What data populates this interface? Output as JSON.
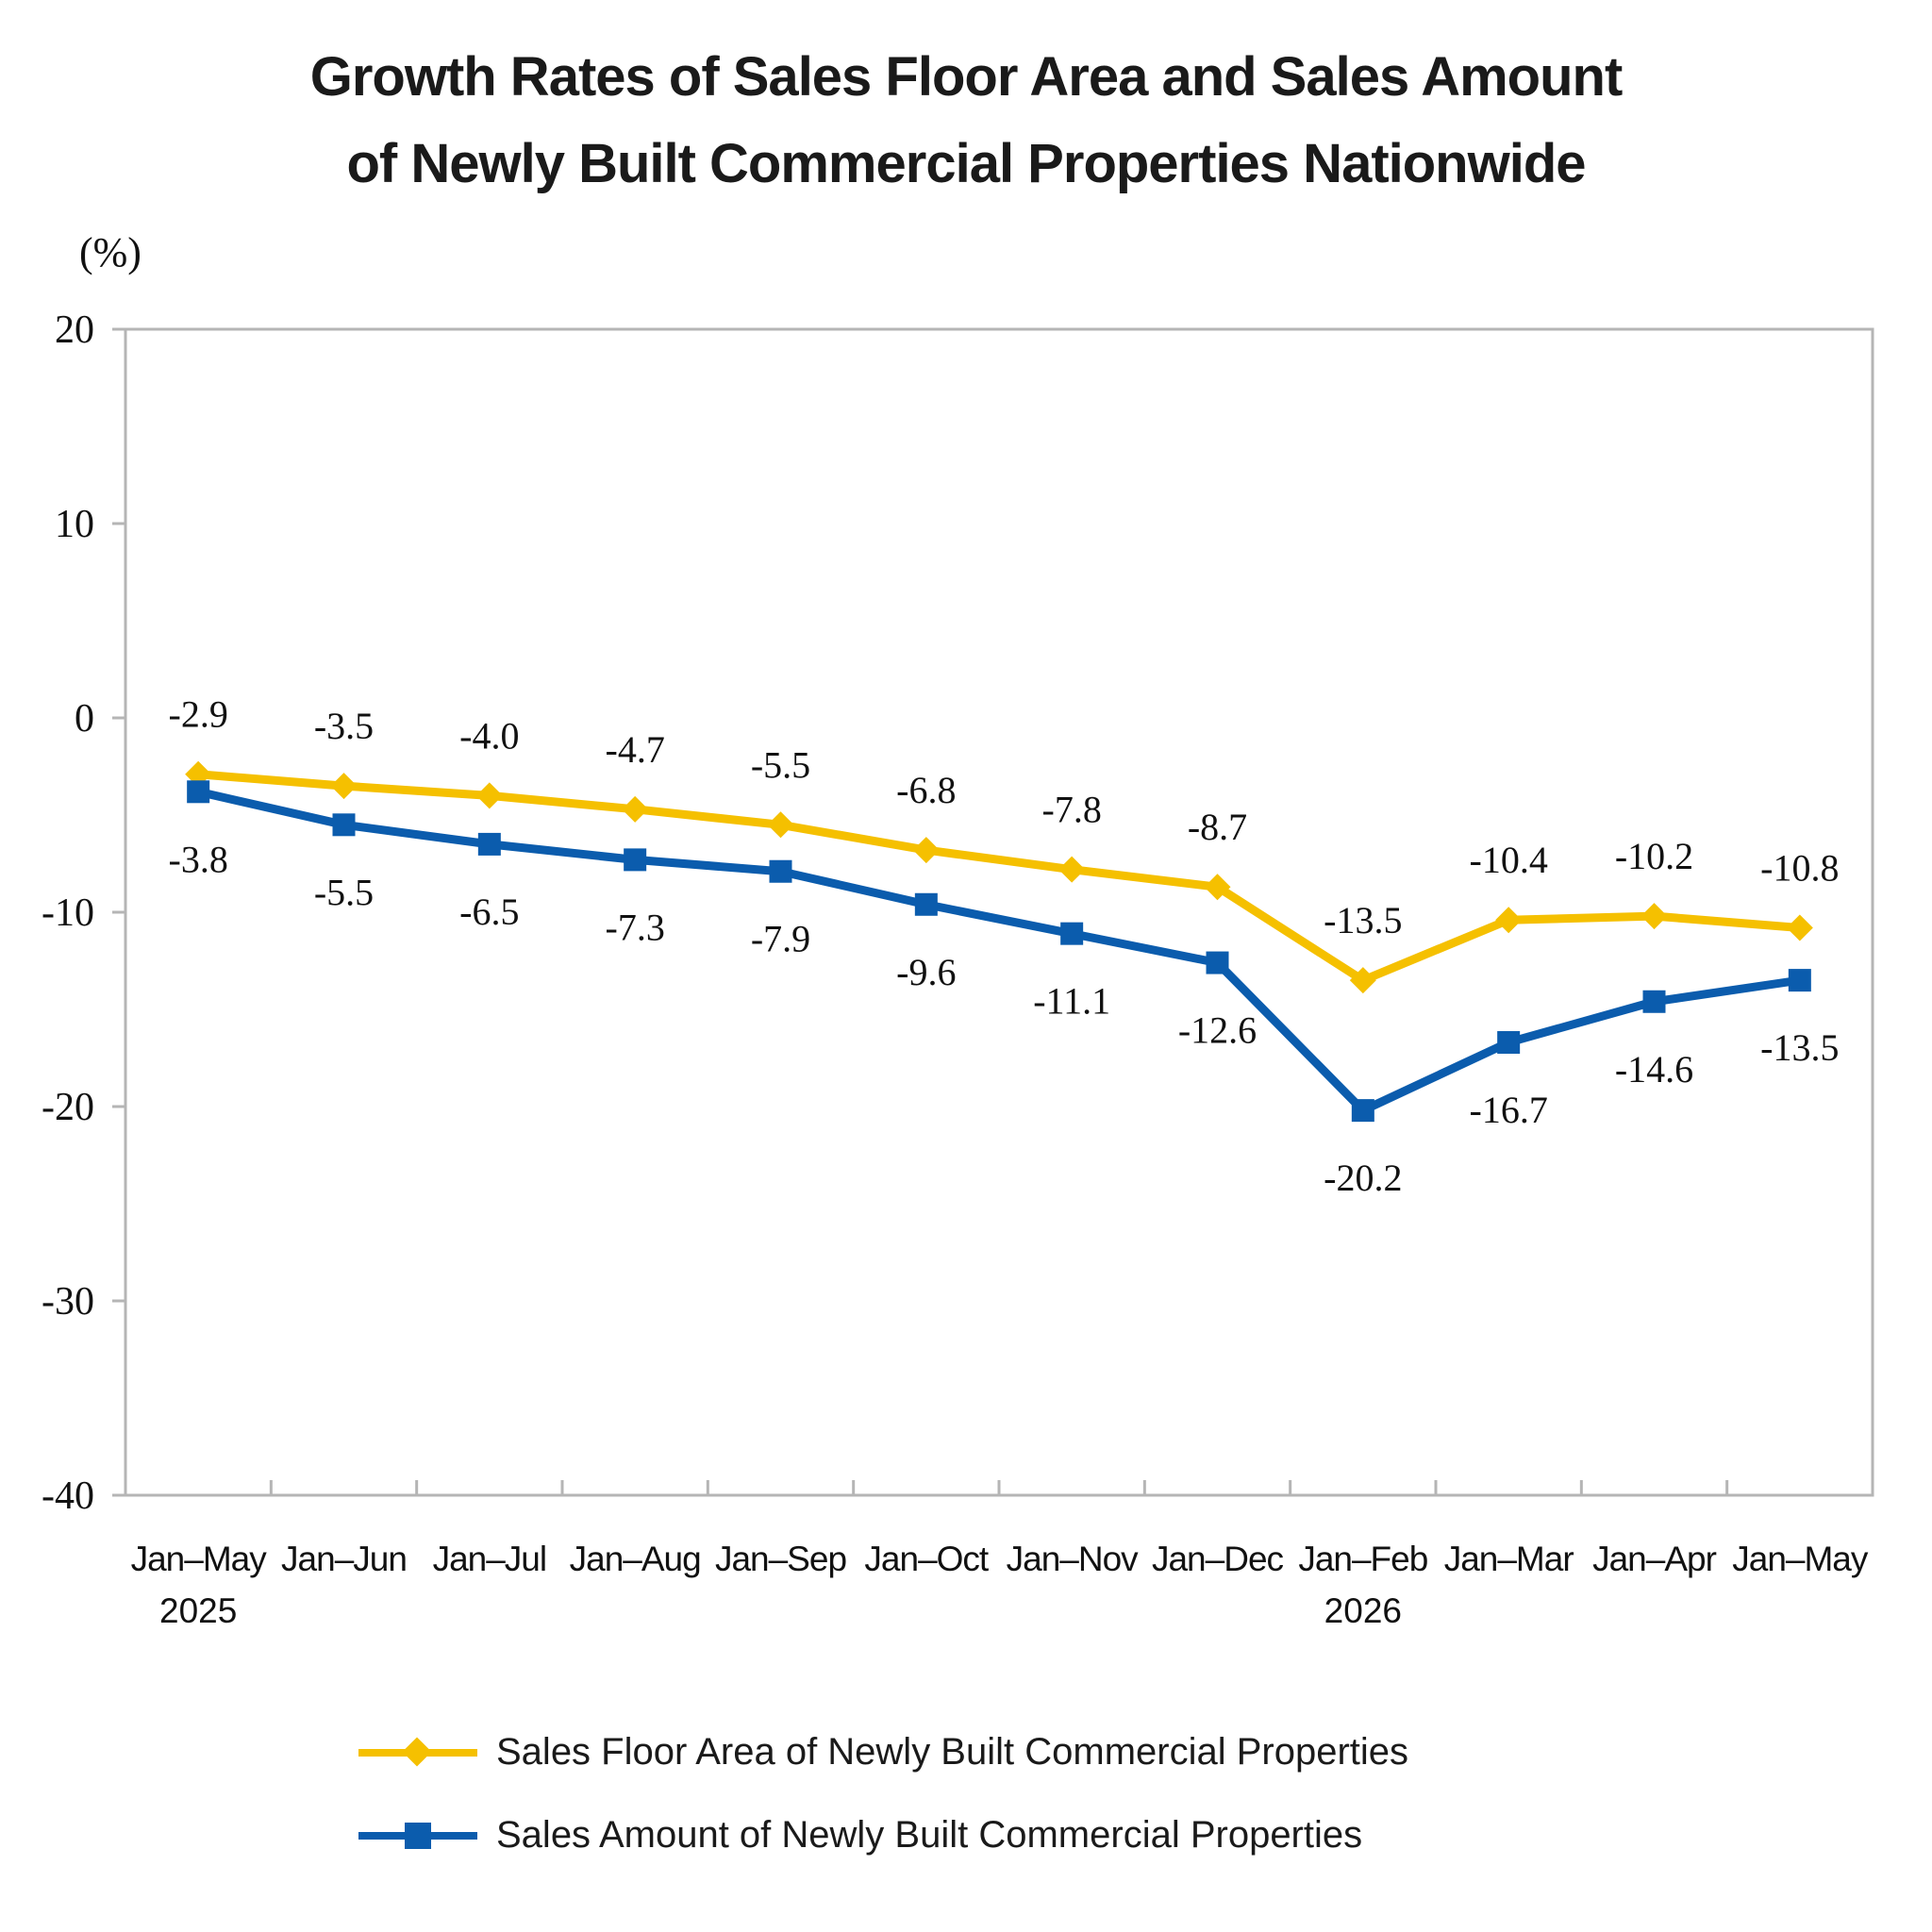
{
  "title_lines": [
    "Growth Rates of Sales Floor Area and Sales Amount",
    "of Newly Built Commercial Properties Nationwide"
  ],
  "y_unit": "(%)",
  "chart_data": {
    "type": "line",
    "title": "Growth Rates of Sales Floor Area and Sales Amount of Newly Built Commercial Properties Nationwide",
    "ylabel": "(%)",
    "xlabel": "",
    "ylim": [
      -40,
      20
    ],
    "yticks": [
      20,
      10,
      0,
      -10,
      -20,
      -30,
      -40
    ],
    "grid": false,
    "legend_position": "bottom",
    "categories": [
      "Jan–May",
      "Jan–Jun",
      "Jan–Jul",
      "Jan–Aug",
      "Jan–Sep",
      "Jan–Oct",
      "Jan–Nov",
      "Jan–Dec",
      "Jan–Feb",
      "Jan–Mar",
      "Jan–Apr",
      "Jan–May"
    ],
    "category_sublabels": [
      "2025",
      "",
      "",
      "",
      "",
      "",
      "",
      "",
      "2026",
      "",
      "",
      ""
    ],
    "series": [
      {
        "name": "Sales Floor Area of Newly Built Commercial Properties",
        "color": "#F5C000",
        "marker": "diamond",
        "values": [
          -2.9,
          -3.5,
          -4.0,
          -4.7,
          -5.5,
          -6.8,
          -7.8,
          -8.7,
          -13.5,
          -10.4,
          -10.2,
          -10.8
        ],
        "labels": [
          "-2.9",
          "-3.5",
          "-4.0",
          "-4.7",
          "-5.5",
          "-6.8",
          "-7.8",
          "-8.7",
          "-13.5",
          "-10.4",
          "-10.2",
          "-10.8"
        ]
      },
      {
        "name": "Sales Amount of Newly Built Commercial Properties",
        "color": "#0B5CAD",
        "marker": "square",
        "values": [
          -3.8,
          -5.5,
          -6.5,
          -7.3,
          -7.9,
          -9.6,
          -11.1,
          -12.6,
          -20.2,
          -16.7,
          -14.6,
          -13.5
        ],
        "labels": [
          "-3.8",
          "-5.5",
          "-6.5",
          "-7.3",
          "-7.9",
          "-9.6",
          "-11.1",
          "-12.6",
          "-20.2",
          "-16.7",
          "-14.6",
          "-13.5"
        ]
      }
    ]
  }
}
